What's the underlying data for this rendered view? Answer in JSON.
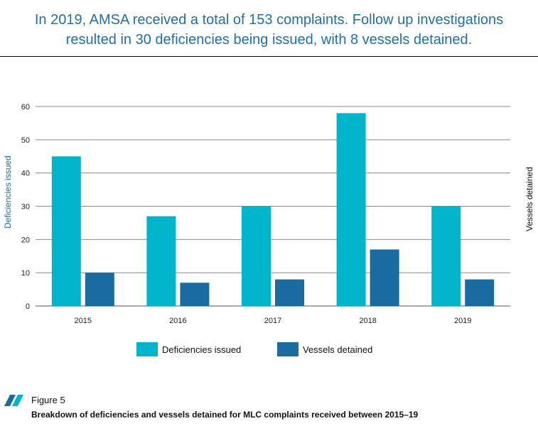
{
  "headline": {
    "line1": "In 2019, AMSA received a total of 153 complaints. Follow up investigations",
    "line2": "resulted in 30 deficiencies being issued, with 8 vessels detained."
  },
  "figure": {
    "label": "Figure 5",
    "caption": "Breakdown of deficiencies and vessels detained for MLC complaints received between 2015–19"
  },
  "colors": {
    "deficiencies": "#00b4cc",
    "vessels": "#1a6ba0",
    "headline": "#1f6fa8",
    "grid": "#888888"
  },
  "chart_data": {
    "type": "bar",
    "categories": [
      "2015",
      "2016",
      "2017",
      "2018",
      "2019"
    ],
    "series": [
      {
        "name": "Deficiencies issued",
        "values": [
          45,
          27,
          30,
          58,
          30
        ]
      },
      {
        "name": "Vessels detained",
        "values": [
          10,
          7,
          8,
          17,
          8
        ]
      }
    ],
    "ylabel": "Deficiencies issued",
    "y2label": "Vessels detained",
    "ylim": [
      0,
      60
    ],
    "yticks": [
      0,
      10,
      20,
      30,
      40,
      50,
      60
    ],
    "grid": true,
    "legend_position": "bottom-center"
  }
}
